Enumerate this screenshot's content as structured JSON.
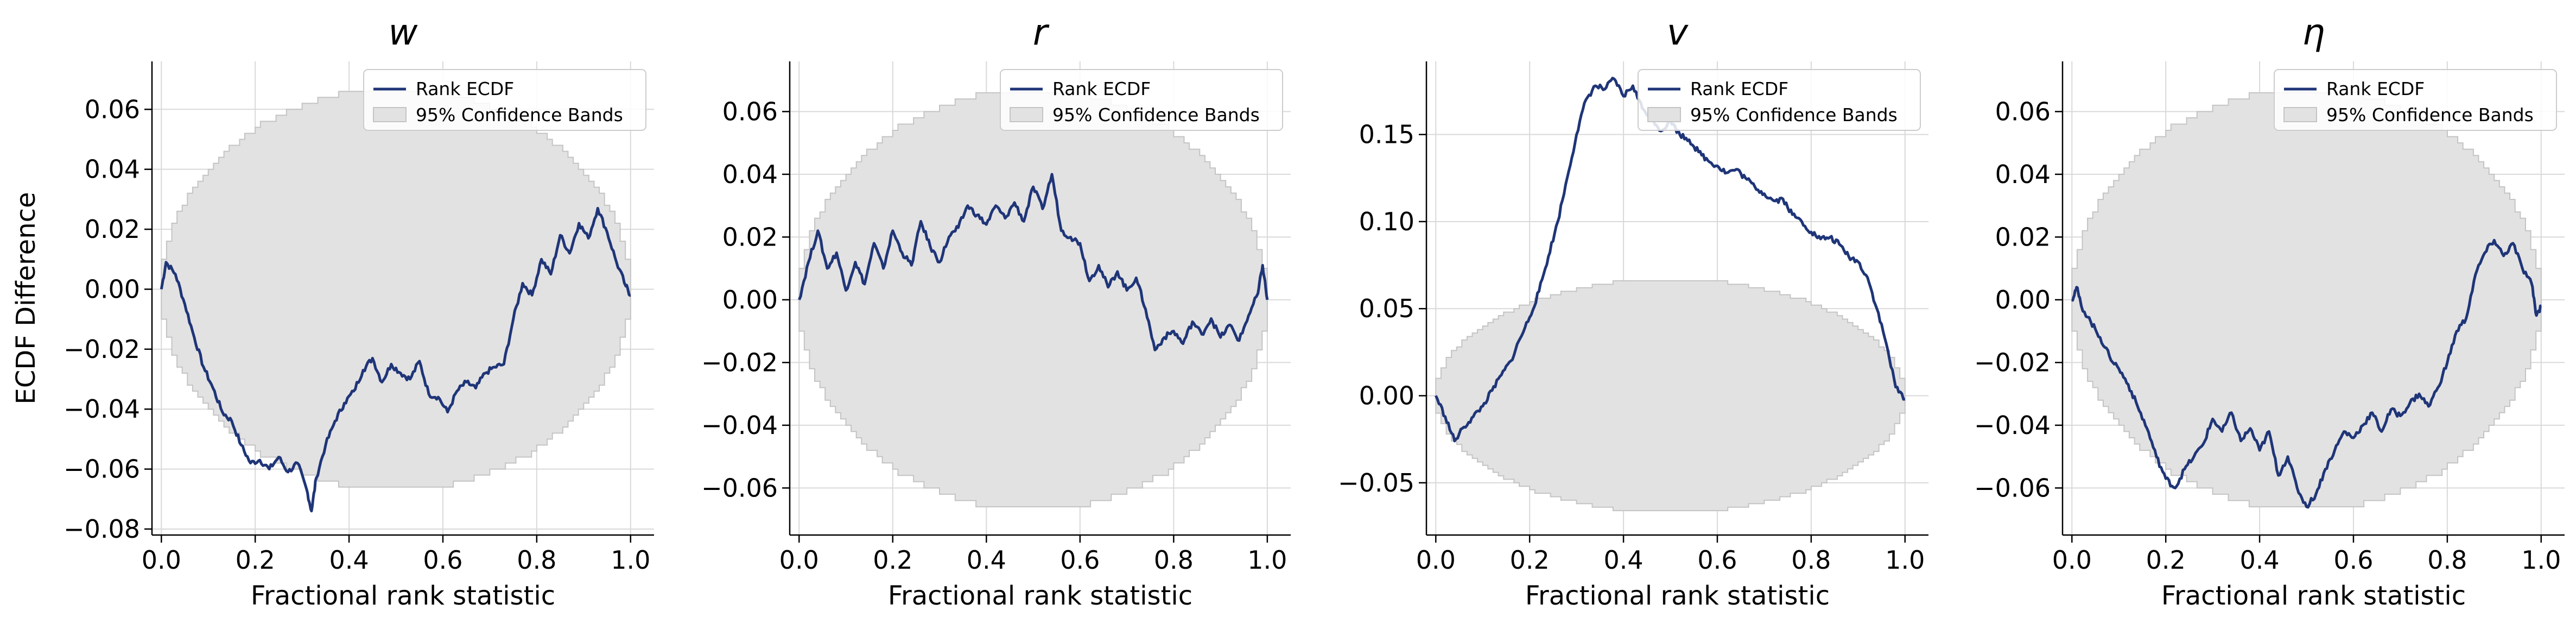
{
  "figure": {
    "colors": {
      "line": "#1f3578",
      "band_fill": "#e2e2e2",
      "band_edge": "#c4c4c4",
      "grid": "#d9d9d9",
      "axis": "#000000"
    },
    "legend": {
      "line_label": "Rank ECDF",
      "band_label": "95% Confidence Bands",
      "placement": "top-right"
    }
  },
  "chart_data": [
    {
      "type": "line",
      "title": "w",
      "xlabel": "Fractional rank statistic",
      "ylabel": "ECDF Difference",
      "xlim": [
        -0.02,
        1.05
      ],
      "ylim": [
        -0.082,
        0.076
      ],
      "xticks": [
        0.0,
        0.2,
        0.4,
        0.6,
        0.8,
        1.0
      ],
      "xtick_labels": [
        "0.0",
        "0.2",
        "0.4",
        "0.6",
        "0.8",
        "1.0"
      ],
      "yticks": [
        -0.08,
        -0.06,
        -0.04,
        -0.02,
        0.0,
        0.02,
        0.04,
        0.06
      ],
      "ytick_labels": [
        "−0.08",
        "−0.06",
        "−0.04",
        "−0.02",
        "0.00",
        "0.02",
        "0.04",
        "0.06"
      ],
      "grid": true,
      "band_halfwidth": 0.068,
      "series": [
        {
          "name": "Rank ECDF",
          "x": [
            0.0,
            0.01,
            0.03,
            0.05,
            0.07,
            0.09,
            0.11,
            0.13,
            0.15,
            0.17,
            0.19,
            0.21,
            0.23,
            0.25,
            0.27,
            0.29,
            0.31,
            0.32,
            0.33,
            0.35,
            0.37,
            0.39,
            0.41,
            0.43,
            0.45,
            0.47,
            0.49,
            0.51,
            0.53,
            0.55,
            0.57,
            0.59,
            0.61,
            0.63,
            0.65,
            0.67,
            0.69,
            0.71,
            0.73,
            0.75,
            0.77,
            0.79,
            0.81,
            0.83,
            0.85,
            0.87,
            0.89,
            0.91,
            0.93,
            0.95,
            0.97,
            0.99,
            1.0
          ],
          "y": [
            0.0,
            0.009,
            0.005,
            -0.005,
            -0.016,
            -0.026,
            -0.033,
            -0.041,
            -0.044,
            -0.052,
            -0.058,
            -0.057,
            -0.06,
            -0.056,
            -0.061,
            -0.058,
            -0.067,
            -0.074,
            -0.063,
            -0.052,
            -0.044,
            -0.038,
            -0.034,
            -0.027,
            -0.023,
            -0.031,
            -0.025,
            -0.028,
            -0.03,
            -0.024,
            -0.035,
            -0.036,
            -0.041,
            -0.034,
            -0.031,
            -0.033,
            -0.028,
            -0.026,
            -0.025,
            -0.01,
            0.002,
            -0.002,
            0.01,
            0.005,
            0.018,
            0.012,
            0.022,
            0.017,
            0.027,
            0.019,
            0.009,
            0.001,
            -0.002
          ]
        }
      ]
    },
    {
      "type": "line",
      "title": "r",
      "xlabel": "Fractional rank statistic",
      "ylabel": "",
      "xlim": [
        -0.02,
        1.05
      ],
      "ylim": [
        -0.075,
        0.076
      ],
      "xticks": [
        0.0,
        0.2,
        0.4,
        0.6,
        0.8,
        1.0
      ],
      "xtick_labels": [
        "0.0",
        "0.2",
        "0.4",
        "0.6",
        "0.8",
        "1.0"
      ],
      "yticks": [
        -0.06,
        -0.04,
        -0.02,
        0.0,
        0.02,
        0.04,
        0.06
      ],
      "ytick_labels": [
        "−0.06",
        "−0.04",
        "−0.02",
        "0.00",
        "0.02",
        "0.04",
        "0.06"
      ],
      "grid": true,
      "band_halfwidth": 0.068,
      "series": [
        {
          "name": "Rank ECDF",
          "x": [
            0.0,
            0.02,
            0.04,
            0.06,
            0.08,
            0.1,
            0.12,
            0.14,
            0.16,
            0.18,
            0.2,
            0.22,
            0.24,
            0.26,
            0.28,
            0.3,
            0.32,
            0.34,
            0.36,
            0.38,
            0.4,
            0.42,
            0.44,
            0.46,
            0.48,
            0.5,
            0.52,
            0.54,
            0.56,
            0.58,
            0.6,
            0.62,
            0.64,
            0.66,
            0.68,
            0.7,
            0.72,
            0.74,
            0.76,
            0.78,
            0.8,
            0.82,
            0.84,
            0.86,
            0.88,
            0.9,
            0.92,
            0.94,
            0.96,
            0.98,
            0.99,
            1.0
          ],
          "y": [
            0.0,
            0.012,
            0.022,
            0.01,
            0.015,
            0.003,
            0.012,
            0.005,
            0.018,
            0.01,
            0.022,
            0.015,
            0.011,
            0.025,
            0.017,
            0.012,
            0.02,
            0.023,
            0.03,
            0.027,
            0.024,
            0.03,
            0.026,
            0.031,
            0.025,
            0.036,
            0.029,
            0.04,
            0.022,
            0.02,
            0.018,
            0.006,
            0.011,
            0.004,
            0.009,
            0.003,
            0.007,
            -0.003,
            -0.016,
            -0.012,
            -0.01,
            -0.014,
            -0.007,
            -0.011,
            -0.006,
            -0.012,
            -0.008,
            -0.013,
            -0.005,
            0.002,
            0.011,
            0.0
          ]
        }
      ]
    },
    {
      "type": "line",
      "title": "v",
      "xlabel": "Fractional rank statistic",
      "ylabel": "",
      "xlim": [
        -0.02,
        1.05
      ],
      "ylim": [
        -0.08,
        0.192
      ],
      "xticks": [
        0.0,
        0.2,
        0.4,
        0.6,
        0.8,
        1.0
      ],
      "xtick_labels": [
        "0.0",
        "0.2",
        "0.4",
        "0.6",
        "0.8",
        "1.0"
      ],
      "yticks": [
        -0.05,
        0.0,
        0.05,
        0.1,
        0.15
      ],
      "ytick_labels": [
        "−0.05",
        "0.00",
        "0.05",
        "0.10",
        "0.15"
      ],
      "grid": true,
      "band_halfwidth": 0.068,
      "series": [
        {
          "name": "Rank ECDF",
          "x": [
            0.0,
            0.02,
            0.04,
            0.06,
            0.08,
            0.1,
            0.12,
            0.14,
            0.16,
            0.18,
            0.2,
            0.22,
            0.24,
            0.26,
            0.28,
            0.3,
            0.32,
            0.34,
            0.36,
            0.38,
            0.4,
            0.42,
            0.44,
            0.46,
            0.48,
            0.5,
            0.52,
            0.54,
            0.56,
            0.58,
            0.6,
            0.62,
            0.64,
            0.66,
            0.68,
            0.7,
            0.72,
            0.74,
            0.76,
            0.78,
            0.8,
            0.82,
            0.84,
            0.86,
            0.88,
            0.9,
            0.92,
            0.94,
            0.96,
            0.98,
            1.0
          ],
          "y": [
            0.0,
            -0.012,
            -0.026,
            -0.018,
            -0.012,
            -0.006,
            0.003,
            0.012,
            0.02,
            0.033,
            0.045,
            0.06,
            0.08,
            0.1,
            0.125,
            0.15,
            0.17,
            0.178,
            0.176,
            0.182,
            0.172,
            0.178,
            0.165,
            0.16,
            0.152,
            0.158,
            0.15,
            0.147,
            0.14,
            0.135,
            0.132,
            0.128,
            0.13,
            0.125,
            0.12,
            0.116,
            0.112,
            0.113,
            0.104,
            0.1,
            0.094,
            0.09,
            0.091,
            0.087,
            0.08,
            0.077,
            0.068,
            0.05,
            0.03,
            0.005,
            -0.002
          ]
        }
      ]
    },
    {
      "type": "line",
      "title": "η",
      "xlabel": "Fractional rank statistic",
      "ylabel": "",
      "xlim": [
        -0.02,
        1.05
      ],
      "ylim": [
        -0.075,
        0.076
      ],
      "xticks": [
        0.0,
        0.2,
        0.4,
        0.6,
        0.8,
        1.0
      ],
      "xtick_labels": [
        "0.0",
        "0.2",
        "0.4",
        "0.6",
        "0.8",
        "1.0"
      ],
      "yticks": [
        -0.06,
        -0.04,
        -0.02,
        0.0,
        0.02,
        0.04,
        0.06
      ],
      "ytick_labels": [
        "−0.06",
        "−0.04",
        "−0.02",
        "0.00",
        "0.02",
        "0.04",
        "0.06"
      ],
      "grid": true,
      "band_halfwidth": 0.068,
      "series": [
        {
          "name": "Rank ECDF",
          "x": [
            0.0,
            0.01,
            0.02,
            0.04,
            0.06,
            0.08,
            0.1,
            0.12,
            0.14,
            0.16,
            0.18,
            0.2,
            0.22,
            0.24,
            0.26,
            0.28,
            0.3,
            0.32,
            0.34,
            0.36,
            0.38,
            0.4,
            0.42,
            0.44,
            0.46,
            0.48,
            0.5,
            0.52,
            0.54,
            0.56,
            0.58,
            0.6,
            0.62,
            0.64,
            0.66,
            0.68,
            0.7,
            0.72,
            0.74,
            0.76,
            0.78,
            0.8,
            0.82,
            0.84,
            0.86,
            0.88,
            0.9,
            0.92,
            0.94,
            0.96,
            0.98,
            0.99,
            1.0
          ],
          "y": [
            0.0,
            0.004,
            -0.002,
            -0.007,
            -0.012,
            -0.018,
            -0.022,
            -0.027,
            -0.034,
            -0.041,
            -0.05,
            -0.057,
            -0.06,
            -0.054,
            -0.05,
            -0.046,
            -0.038,
            -0.042,
            -0.036,
            -0.045,
            -0.041,
            -0.048,
            -0.042,
            -0.056,
            -0.05,
            -0.06,
            -0.066,
            -0.062,
            -0.054,
            -0.048,
            -0.042,
            -0.044,
            -0.04,
            -0.036,
            -0.042,
            -0.035,
            -0.037,
            -0.033,
            -0.03,
            -0.034,
            -0.028,
            -0.02,
            -0.01,
            -0.006,
            0.008,
            0.015,
            0.019,
            0.014,
            0.018,
            0.01,
            0.005,
            -0.005,
            -0.002
          ]
        }
      ]
    }
  ]
}
